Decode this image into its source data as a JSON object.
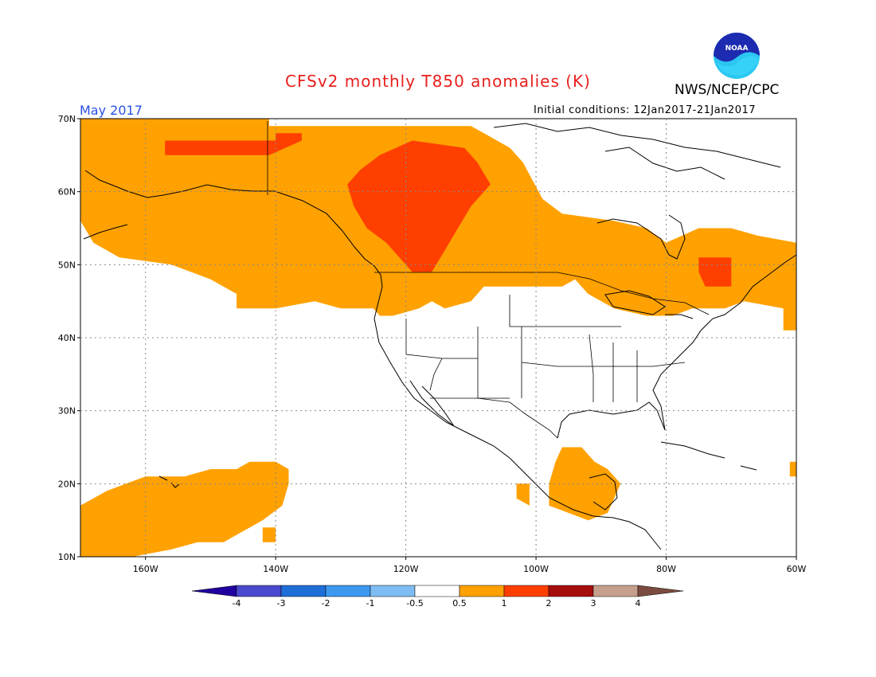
{
  "title": "CFSv2 monthly T850 anomalies (K)",
  "month_label": "May 2017",
  "organization": "NWS/NCEP/CPC",
  "logo_text": "NOAA",
  "initial_conditions": "Initial conditions: 12Jan2017-21Jan2017",
  "map": {
    "lon_range": [
      -170,
      -60
    ],
    "lat_range": [
      10,
      70
    ],
    "lat_ticks": [
      {
        "value": 70,
        "label": "70N"
      },
      {
        "value": 60,
        "label": "60N"
      },
      {
        "value": 50,
        "label": "50N"
      },
      {
        "value": 40,
        "label": "40N"
      },
      {
        "value": 30,
        "label": "30N"
      },
      {
        "value": 20,
        "label": "20N"
      },
      {
        "value": 10,
        "label": "10N"
      }
    ],
    "lon_ticks": [
      {
        "value": -160,
        "label": "160W"
      },
      {
        "value": -140,
        "label": "140W"
      },
      {
        "value": -120,
        "label": "120W"
      },
      {
        "value": -100,
        "label": "100W"
      },
      {
        "value": -80,
        "label": "80W"
      },
      {
        "value": -60,
        "label": "60W"
      }
    ],
    "anomaly_regions": [
      {
        "name": "north-pacific-alaska-canada",
        "category": "0.5-1",
        "color": "#ffa100",
        "polygon": [
          [
            -170,
            70
          ],
          [
            -141,
            70
          ],
          [
            -141,
            69
          ],
          [
            -110,
            69
          ],
          [
            -108,
            68
          ],
          [
            -104,
            66
          ],
          [
            -102,
            64
          ],
          [
            -99,
            59
          ],
          [
            -96,
            57
          ],
          [
            -88,
            56
          ],
          [
            -83,
            55
          ],
          [
            -80,
            53
          ],
          [
            -75,
            55
          ],
          [
            -70,
            55
          ],
          [
            -66,
            54
          ],
          [
            -60,
            53
          ],
          [
            -60,
            41
          ],
          [
            -62,
            41
          ],
          [
            -62,
            44
          ],
          [
            -68,
            45
          ],
          [
            -71,
            44
          ],
          [
            -76,
            44
          ],
          [
            -79,
            43
          ],
          [
            -83,
            43
          ],
          [
            -88,
            44
          ],
          [
            -92,
            46
          ],
          [
            -94,
            48
          ],
          [
            -96,
            47
          ],
          [
            -104,
            47
          ],
          [
            -108,
            47
          ],
          [
            -110,
            45
          ],
          [
            -114,
            44
          ],
          [
            -116,
            45
          ],
          [
            -118,
            44
          ],
          [
            -122,
            43
          ],
          [
            -124,
            43
          ],
          [
            -125,
            44
          ],
          [
            -130,
            44
          ],
          [
            -134,
            45
          ],
          [
            -140,
            44
          ],
          [
            -146,
            44
          ],
          [
            -146,
            46
          ],
          [
            -150,
            48
          ],
          [
            -156,
            50
          ],
          [
            -164,
            51
          ],
          [
            -168,
            53
          ],
          [
            -170,
            56
          ]
        ]
      },
      {
        "name": "west-canada-core",
        "category": "1-2",
        "color": "#ff3f00",
        "polygon": [
          [
            -124,
            65
          ],
          [
            -119,
            67
          ],
          [
            -111,
            66
          ],
          [
            -109,
            64
          ],
          [
            -107,
            61
          ],
          [
            -110,
            58
          ],
          [
            -112,
            55
          ],
          [
            -114,
            52
          ],
          [
            -116,
            49
          ],
          [
            -119,
            49
          ],
          [
            -121,
            51
          ],
          [
            -123,
            53
          ],
          [
            -126,
            55
          ],
          [
            -128,
            58
          ],
          [
            -129,
            61
          ],
          [
            -127,
            63
          ]
        ]
      },
      {
        "name": "yukon-core",
        "category": "1-2",
        "color": "#ff3f00",
        "polygon": [
          [
            -157,
            67
          ],
          [
            -140,
            67
          ],
          [
            -140,
            68
          ],
          [
            -136,
            68
          ],
          [
            -136,
            67
          ],
          [
            -141,
            65
          ],
          [
            -157,
            65
          ]
        ]
      },
      {
        "name": "quebec-core",
        "category": "1-2",
        "color": "#ff3f00",
        "polygon": [
          [
            -75,
            51
          ],
          [
            -70,
            51
          ],
          [
            -70,
            47
          ],
          [
            -74,
            47
          ],
          [
            -75,
            49
          ]
        ]
      },
      {
        "name": "hawaii-pacific",
        "category": "0.5-1",
        "color": "#ffa100",
        "polygon": [
          [
            -170,
            17
          ],
          [
            -166,
            19
          ],
          [
            -163,
            20
          ],
          [
            -160,
            21
          ],
          [
            -154,
            21
          ],
          [
            -150,
            22
          ],
          [
            -146,
            22
          ],
          [
            -144,
            23
          ],
          [
            -140,
            23
          ],
          [
            -138,
            22
          ],
          [
            -138,
            20
          ],
          [
            -139,
            17
          ],
          [
            -142,
            15
          ],
          [
            -146,
            13
          ],
          [
            -148,
            12
          ],
          [
            -152,
            12
          ],
          [
            -156,
            11
          ],
          [
            -162,
            10
          ],
          [
            -170,
            10
          ]
        ]
      },
      {
        "name": "hawaii-pacific-isolated",
        "category": "0.5-1",
        "color": "#ffa100",
        "polygon": [
          [
            -142,
            14
          ],
          [
            -140,
            14
          ],
          [
            -140,
            12
          ],
          [
            -142,
            12
          ]
        ]
      },
      {
        "name": "mexico-central-america",
        "category": "0.5-1",
        "color": "#ffa100",
        "polygon": [
          [
            -96,
            25
          ],
          [
            -93,
            25
          ],
          [
            -91,
            23
          ],
          [
            -89,
            22
          ],
          [
            -87,
            20
          ],
          [
            -88,
            18
          ],
          [
            -89,
            16
          ],
          [
            -92,
            15
          ],
          [
            -95,
            16
          ],
          [
            -98,
            17
          ],
          [
            -98,
            20
          ],
          [
            -97,
            23
          ]
        ]
      },
      {
        "name": "mexico-west-spot",
        "category": "0.5-1",
        "color": "#ffa100",
        "polygon": [
          [
            -103,
            20
          ],
          [
            -101,
            20
          ],
          [
            -101,
            17
          ],
          [
            -103,
            18
          ]
        ]
      },
      {
        "name": "atlantic-edge",
        "category": "0.5-1",
        "color": "#ffa100",
        "polygon": [
          [
            -60,
            23
          ],
          [
            -60,
            21
          ],
          [
            -61,
            21
          ],
          [
            -61,
            23
          ]
        ]
      }
    ]
  },
  "colorbar": {
    "colors": [
      "#20009e",
      "#4a4acf",
      "#1f6fd8",
      "#3d98f0",
      "#7dbdf3",
      "#ffffff",
      "#ffa100",
      "#ff3f00",
      "#a60d0d",
      "#c4a08c",
      "#7c4b3f"
    ],
    "labels": [
      "-4",
      "-3",
      "-2",
      "-1",
      "-0.5",
      "0.5",
      "1",
      "2",
      "3",
      "4"
    ]
  }
}
